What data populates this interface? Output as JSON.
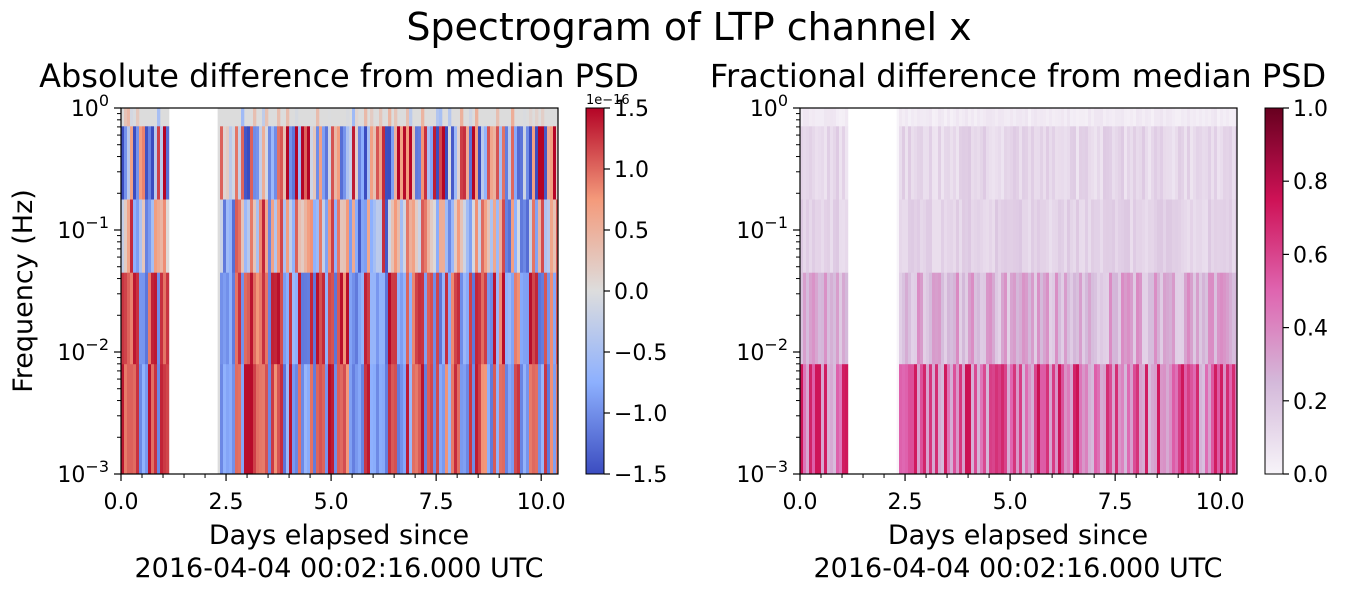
{
  "figure": {
    "suptitle": "Spectrogram of LTP channel x"
  },
  "chart_data": [
    {
      "type": "heatmap",
      "title": "Absolute difference from median PSD",
      "xlabel": "Days elapsed since\n2016-04-04 00:02:16.000 UTC",
      "ylabel": "Frequency (Hz)",
      "xlim": [
        0,
        10.4
      ],
      "ylim": [
        0.001,
        1
      ],
      "yscale": "log",
      "x_ticks": [
        {
          "value": 0,
          "label": "0.0"
        },
        {
          "value": 2.5,
          "label": "2.5"
        },
        {
          "value": 5,
          "label": "5.0"
        },
        {
          "value": 7.5,
          "label": "7.5"
        },
        {
          "value": 10,
          "label": "10.0"
        }
      ],
      "y_ticks": [
        {
          "value": 0.001,
          "base": "10",
          "exp": "−3"
        },
        {
          "value": 0.01,
          "base": "10",
          "exp": "−2"
        },
        {
          "value": 0.1,
          "base": "10",
          "exp": "−1"
        },
        {
          "value": 1,
          "base": "10",
          "exp": "0"
        }
      ],
      "data_gap_days": [
        1.15,
        2.3
      ],
      "colormap": "coolwarm",
      "colorbar": {
        "min": -1.5e-16,
        "max": 1.5e-16,
        "offset_text": "1e−16",
        "ticks": [
          {
            "value": 1.5,
            "label": "1.5"
          },
          {
            "value": 1.0,
            "label": "1.0"
          },
          {
            "value": 0.5,
            "label": "0.5"
          },
          {
            "value": 0.0,
            "label": "0.0"
          },
          {
            "value": -0.5,
            "label": "−0.5"
          },
          {
            "value": -1.0,
            "label": "−1.0"
          },
          {
            "value": -1.5,
            "label": "−1.5"
          }
        ]
      },
      "nan_color": "#dcdcdc"
    },
    {
      "type": "heatmap",
      "title": "Fractional difference from median PSD",
      "xlabel": "Days elapsed since\n2016-04-04 00:02:16.000 UTC",
      "ylabel": "",
      "xlim": [
        0,
        10.4
      ],
      "ylim": [
        0.001,
        1
      ],
      "yscale": "log",
      "x_ticks": [
        {
          "value": 0,
          "label": "0.0"
        },
        {
          "value": 2.5,
          "label": "2.5"
        },
        {
          "value": 5,
          "label": "5.0"
        },
        {
          "value": 7.5,
          "label": "7.5"
        },
        {
          "value": 10,
          "label": "10.0"
        }
      ],
      "y_ticks": [
        {
          "value": 0.001,
          "base": "10",
          "exp": "−3"
        },
        {
          "value": 0.01,
          "base": "10",
          "exp": "−2"
        },
        {
          "value": 0.1,
          "base": "10",
          "exp": "−1"
        },
        {
          "value": 1,
          "base": "10",
          "exp": "0"
        }
      ],
      "data_gap_days": [
        1.15,
        2.3
      ],
      "colormap": "PuRd",
      "colorbar": {
        "min": 0,
        "max": 1,
        "ticks": [
          {
            "value": 1.0,
            "label": "1.0"
          },
          {
            "value": 0.8,
            "label": "0.8"
          },
          {
            "value": 0.6,
            "label": "0.6"
          },
          {
            "value": 0.4,
            "label": "0.4"
          },
          {
            "value": 0.2,
            "label": "0.2"
          },
          {
            "value": 0.0,
            "label": "0.0"
          }
        ]
      }
    }
  ]
}
